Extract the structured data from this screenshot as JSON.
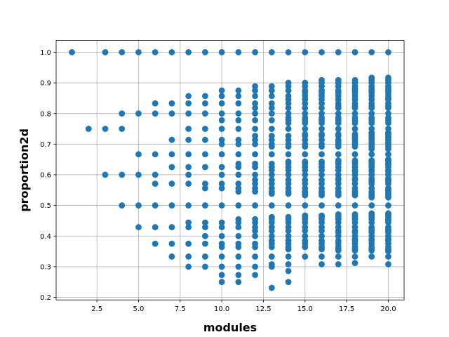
{
  "chart_data": {
    "type": "scatter",
    "title": "",
    "xlabel": "modules",
    "ylabel": "proportion2d",
    "xlim": [
      0.05,
      20.95
    ],
    "ylim": [
      0.1915,
      1.0385
    ],
    "xticks": [
      2.5,
      5.0,
      7.5,
      10.0,
      12.5,
      15.0,
      17.5,
      20.0
    ],
    "xtick_labels": [
      "2.5",
      "5.0",
      "7.5",
      "10.0",
      "12.5",
      "15.0",
      "17.5",
      "20.0"
    ],
    "yticks": [
      0.2,
      0.3,
      0.4,
      0.5,
      0.6,
      0.7,
      0.8,
      0.9,
      1.0
    ],
    "ytick_labels": [
      "0.2",
      "0.3",
      "0.4",
      "0.5",
      "0.6",
      "0.7",
      "0.8",
      "0.9",
      "1.0"
    ],
    "grid": true,
    "marker_color": "#1f77b4",
    "points_by_x": [
      {
        "x": 1,
        "y": [
          1.0
        ]
      },
      {
        "x": 2,
        "y": [
          0.75
        ]
      },
      {
        "x": 3,
        "y": [
          1.0,
          0.75,
          0.6
        ]
      },
      {
        "x": 4,
        "y": [
          1.0,
          0.8,
          0.75,
          0.6,
          0.5
        ]
      },
      {
        "x": 5,
        "y": [
          1.0,
          0.8,
          0.667,
          0.6,
          0.5,
          0.429
        ]
      },
      {
        "x": 6,
        "y": [
          1.0,
          0.833,
          0.8,
          0.667,
          0.6,
          0.571,
          0.5,
          0.429,
          0.375
        ]
      },
      {
        "x": 7,
        "y": [
          1.0,
          0.833,
          0.8,
          0.714,
          0.667,
          0.625,
          0.571,
          0.5,
          0.429,
          0.375,
          0.333
        ]
      },
      {
        "x": 8,
        "y": [
          1.0,
          0.857,
          0.833,
          0.8,
          0.75,
          0.714,
          0.667,
          0.625,
          0.6,
          0.571,
          0.5,
          0.444,
          0.429,
          0.375,
          0.333,
          0.3
        ]
      },
      {
        "x": 9,
        "y": [
          1.0,
          0.857,
          0.833,
          0.8,
          0.75,
          0.714,
          0.667,
          0.625,
          0.571,
          0.556,
          0.5,
          0.444,
          0.429,
          0.4,
          0.375,
          0.333,
          0.3
        ]
      },
      {
        "x": 10,
        "y": [
          1.0,
          0.875,
          0.857,
          0.833,
          0.8,
          0.778,
          0.75,
          0.714,
          0.7,
          0.667,
          0.625,
          0.6,
          0.571,
          0.556,
          0.5,
          0.444,
          0.429,
          0.4,
          0.375,
          0.364,
          0.333,
          0.3,
          0.273,
          0.25
        ]
      },
      {
        "x": 11,
        "y": [
          1.0,
          0.875,
          0.857,
          0.833,
          0.8,
          0.778,
          0.75,
          0.714,
          0.7,
          0.667,
          0.636,
          0.625,
          0.6,
          0.571,
          0.556,
          0.545,
          0.5,
          0.455,
          0.444,
          0.429,
          0.4,
          0.375,
          0.364,
          0.333,
          0.3,
          0.273,
          0.25
        ]
      },
      {
        "x": 12,
        "y": [
          1.0,
          0.889,
          0.875,
          0.857,
          0.833,
          0.818,
          0.8,
          0.778,
          0.75,
          0.727,
          0.714,
          0.7,
          0.667,
          0.636,
          0.625,
          0.6,
          0.583,
          0.571,
          0.556,
          0.545,
          0.5,
          0.455,
          0.444,
          0.429,
          0.417,
          0.4,
          0.375,
          0.364,
          0.333,
          0.3,
          0.273
        ]
      },
      {
        "x": 13,
        "y": [
          1.0,
          0.889,
          0.875,
          0.857,
          0.833,
          0.818,
          0.8,
          0.778,
          0.75,
          0.727,
          0.714,
          0.7,
          0.692,
          0.667,
          0.636,
          0.625,
          0.615,
          0.6,
          0.583,
          0.571,
          0.556,
          0.545,
          0.538,
          0.5,
          0.462,
          0.455,
          0.444,
          0.429,
          0.417,
          0.4,
          0.385,
          0.375,
          0.364,
          0.333,
          0.308,
          0.3,
          0.231
        ]
      },
      {
        "x": 14,
        "y": [
          1.0,
          0.9,
          0.889,
          0.875,
          0.857,
          0.846,
          0.833,
          0.818,
          0.8,
          0.786,
          0.778,
          0.769,
          0.75,
          0.727,
          0.714,
          0.7,
          0.692,
          0.667,
          0.643,
          0.636,
          0.625,
          0.615,
          0.6,
          0.583,
          0.571,
          0.556,
          0.545,
          0.538,
          0.5,
          0.462,
          0.455,
          0.444,
          0.429,
          0.417,
          0.4,
          0.385,
          0.375,
          0.364,
          0.357,
          0.333,
          0.308,
          0.286,
          0.25
        ]
      },
      {
        "x": 15,
        "y": [
          1.0,
          0.9,
          0.889,
          0.875,
          0.867,
          0.857,
          0.846,
          0.833,
          0.818,
          0.8,
          0.786,
          0.778,
          0.769,
          0.75,
          0.733,
          0.727,
          0.714,
          0.7,
          0.692,
          0.667,
          0.643,
          0.636,
          0.625,
          0.615,
          0.6,
          0.583,
          0.571,
          0.556,
          0.545,
          0.538,
          0.533,
          0.5,
          0.467,
          0.462,
          0.455,
          0.444,
          0.429,
          0.417,
          0.4,
          0.385,
          0.375,
          0.364,
          0.333
        ]
      },
      {
        "x": 16,
        "y": [
          1.0,
          0.909,
          0.9,
          0.889,
          0.875,
          0.867,
          0.857,
          0.846,
          0.833,
          0.818,
          0.8,
          0.786,
          0.778,
          0.769,
          0.75,
          0.733,
          0.727,
          0.714,
          0.7,
          0.692,
          0.667,
          0.643,
          0.636,
          0.625,
          0.615,
          0.6,
          0.583,
          0.571,
          0.556,
          0.545,
          0.538,
          0.533,
          0.5,
          0.467,
          0.462,
          0.455,
          0.444,
          0.429,
          0.417,
          0.4,
          0.385,
          0.375,
          0.364,
          0.357,
          0.333,
          0.308
        ]
      },
      {
        "x": 17,
        "y": [
          1.0,
          0.909,
          0.9,
          0.889,
          0.875,
          0.867,
          0.857,
          0.846,
          0.833,
          0.824,
          0.818,
          0.8,
          0.786,
          0.778,
          0.769,
          0.75,
          0.733,
          0.727,
          0.714,
          0.706,
          0.7,
          0.692,
          0.667,
          0.647,
          0.643,
          0.636,
          0.625,
          0.615,
          0.6,
          0.588,
          0.583,
          0.571,
          0.556,
          0.545,
          0.538,
          0.533,
          0.5,
          0.471,
          0.467,
          0.462,
          0.455,
          0.444,
          0.429,
          0.417,
          0.412,
          0.4,
          0.385,
          0.375,
          0.364,
          0.357,
          0.353,
          0.333,
          0.308
        ]
      },
      {
        "x": 18,
        "y": [
          1.0,
          0.909,
          0.9,
          0.889,
          0.882,
          0.875,
          0.867,
          0.857,
          0.846,
          0.833,
          0.824,
          0.818,
          0.8,
          0.786,
          0.778,
          0.769,
          0.75,
          0.733,
          0.727,
          0.722,
          0.714,
          0.706,
          0.7,
          0.692,
          0.667,
          0.647,
          0.643,
          0.636,
          0.625,
          0.615,
          0.611,
          0.6,
          0.588,
          0.583,
          0.571,
          0.556,
          0.545,
          0.538,
          0.533,
          0.5,
          0.471,
          0.467,
          0.462,
          0.455,
          0.444,
          0.429,
          0.417,
          0.412,
          0.4,
          0.389,
          0.385,
          0.375,
          0.364,
          0.357,
          0.353,
          0.333,
          0.312
        ]
      },
      {
        "x": 19,
        "y": [
          1.0,
          0.917,
          0.909,
          0.9,
          0.889,
          0.882,
          0.875,
          0.867,
          0.857,
          0.846,
          0.833,
          0.824,
          0.818,
          0.8,
          0.786,
          0.778,
          0.769,
          0.75,
          0.737,
          0.733,
          0.727,
          0.722,
          0.714,
          0.706,
          0.7,
          0.692,
          0.684,
          0.667,
          0.647,
          0.643,
          0.636,
          0.632,
          0.625,
          0.615,
          0.611,
          0.6,
          0.588,
          0.583,
          0.579,
          0.571,
          0.556,
          0.545,
          0.538,
          0.533,
          0.526,
          0.5,
          0.474,
          0.471,
          0.467,
          0.462,
          0.455,
          0.444,
          0.429,
          0.421,
          0.417,
          0.412,
          0.4,
          0.389,
          0.385,
          0.375,
          0.364,
          0.357,
          0.353,
          0.333
        ]
      },
      {
        "x": 20,
        "y": [
          1.0,
          0.917,
          0.909,
          0.9,
          0.889,
          0.882,
          0.875,
          0.867,
          0.857,
          0.85,
          0.846,
          0.833,
          0.824,
          0.818,
          0.8,
          0.786,
          0.778,
          0.769,
          0.75,
          0.737,
          0.733,
          0.727,
          0.722,
          0.714,
          0.706,
          0.7,
          0.692,
          0.684,
          0.667,
          0.65,
          0.647,
          0.643,
          0.636,
          0.632,
          0.625,
          0.615,
          0.611,
          0.6,
          0.588,
          0.583,
          0.579,
          0.571,
          0.556,
          0.55,
          0.545,
          0.538,
          0.533,
          0.526,
          0.5,
          0.474,
          0.471,
          0.467,
          0.462,
          0.455,
          0.45,
          0.444,
          0.429,
          0.421,
          0.417,
          0.412,
          0.4,
          0.389,
          0.385,
          0.375,
          0.364,
          0.357,
          0.353,
          0.35,
          0.333,
          0.308
        ]
      }
    ]
  }
}
